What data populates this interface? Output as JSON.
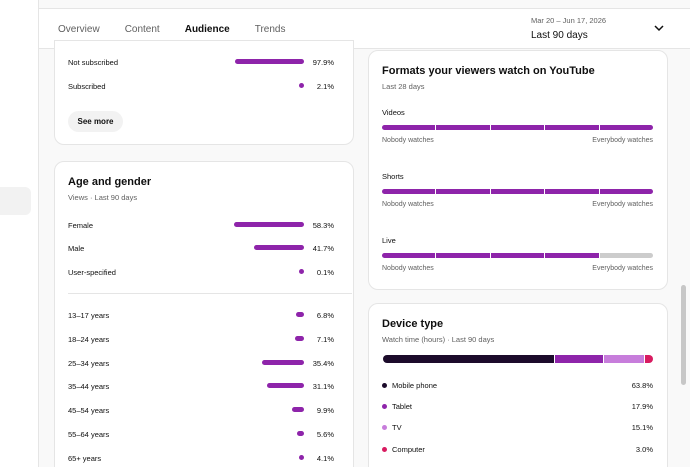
{
  "tabs": [
    "Overview",
    "Content",
    "Audience",
    "Trends"
  ],
  "active_tab": "Audience",
  "date": {
    "range": "Mar 20 – Jun 17, 2026",
    "period": "Last 90 days"
  },
  "subscription": {
    "rows": [
      {
        "label": "Not subscribed",
        "value": "97.9%",
        "fraction": 0.979
      },
      {
        "label": "Subscribed",
        "value": "2.1%",
        "fraction": 0.021
      }
    ],
    "see_more": "See more"
  },
  "age_gender": {
    "title": "Age and gender",
    "subtitle": "Views · Last 90 days",
    "gender": [
      {
        "label": "Female",
        "value": "58.3%",
        "fraction": 0.583
      },
      {
        "label": "Male",
        "value": "41.7%",
        "fraction": 0.417
      },
      {
        "label": "User-specified",
        "value": "0.1%",
        "fraction": 0.001
      }
    ],
    "ages": [
      {
        "label": "13–17 years",
        "value": "6.8%",
        "fraction": 0.068
      },
      {
        "label": "18–24 years",
        "value": "7.1%",
        "fraction": 0.071
      },
      {
        "label": "25–34 years",
        "value": "35.4%",
        "fraction": 0.354
      },
      {
        "label": "35–44 years",
        "value": "31.1%",
        "fraction": 0.311
      },
      {
        "label": "45–54 years",
        "value": "9.9%",
        "fraction": 0.099
      },
      {
        "label": "55–64 years",
        "value": "5.6%",
        "fraction": 0.056
      },
      {
        "label": "65+ years",
        "value": "4.1%",
        "fraction": 0.041
      }
    ]
  },
  "formats": {
    "title": "Formats your viewers watch on YouTube",
    "subtitle": "Last 28 days",
    "items": [
      {
        "label": "Videos",
        "level": 5,
        "of": 5,
        "low": "Nobody watches",
        "high": "Everybody watches"
      },
      {
        "label": "Shorts",
        "level": 5,
        "of": 5,
        "low": "Nobody watches",
        "high": "Everybody watches"
      },
      {
        "label": "Live",
        "level": 4,
        "of": 5,
        "low": "Nobody watches",
        "high": "Everybody watches"
      }
    ]
  },
  "device": {
    "title": "Device type",
    "subtitle": "Watch time (hours) · Last 90 days",
    "items": [
      {
        "label": "Mobile phone",
        "value": "63.8%",
        "fraction": 0.638,
        "color": "#1c0b2b"
      },
      {
        "label": "Tablet",
        "value": "17.9%",
        "fraction": 0.179,
        "color": "#8e24aa"
      },
      {
        "label": "TV",
        "value": "15.1%",
        "fraction": 0.151,
        "color": "#c77ddb"
      },
      {
        "label": "Computer",
        "value": "3.0%",
        "fraction": 0.03,
        "color": "#d81b60"
      }
    ]
  },
  "colors": {
    "accent": "#8e24aa",
    "track": "#cccccc"
  },
  "icons": {
    "expand": "chevron-down-icon"
  }
}
